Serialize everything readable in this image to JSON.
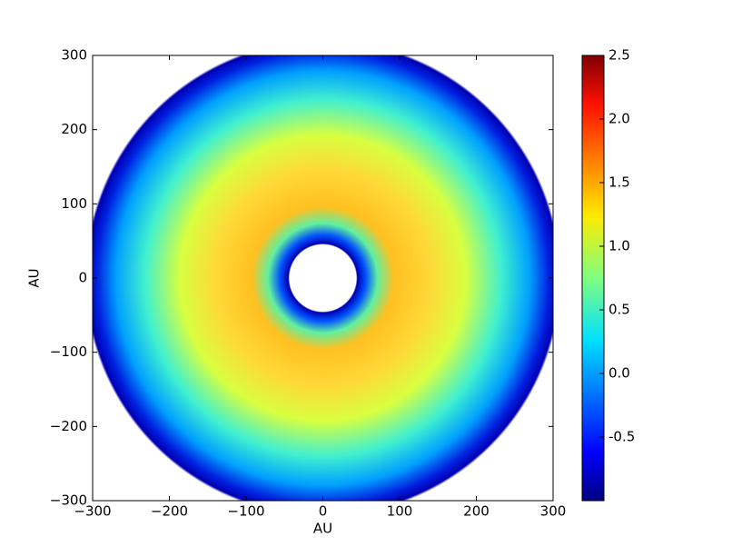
{
  "chart_data": {
    "type": "heatmap",
    "x_label": "AU",
    "y_label": "AU",
    "xlim": [
      -300,
      300
    ],
    "ylim": [
      -300,
      300
    ],
    "xticks": [
      {
        "value": -300,
        "label": "−300"
      },
      {
        "value": -200,
        "label": "−200"
      },
      {
        "value": -100,
        "label": "−100"
      },
      0,
      100,
      200,
      300
    ],
    "yticks": [
      {
        "value": -300,
        "label": "−300"
      },
      {
        "value": -200,
        "label": "−200"
      },
      {
        "value": -100,
        "label": "−100"
      },
      0,
      100,
      200,
      300
    ],
    "colormap": "jet",
    "clim": [
      -1.0,
      2.5
    ],
    "cticks": [
      {
        "value": -0.5,
        "label": "-0.5"
      },
      {
        "value": 0,
        "label": "0.0"
      },
      {
        "value": 0.5,
        "label": "0.5"
      },
      {
        "value": 1,
        "label": "1.0"
      },
      {
        "value": 1.5,
        "label": "1.5"
      },
      {
        "value": 2,
        "label": "2.0"
      },
      2.5
    ]
  }
}
